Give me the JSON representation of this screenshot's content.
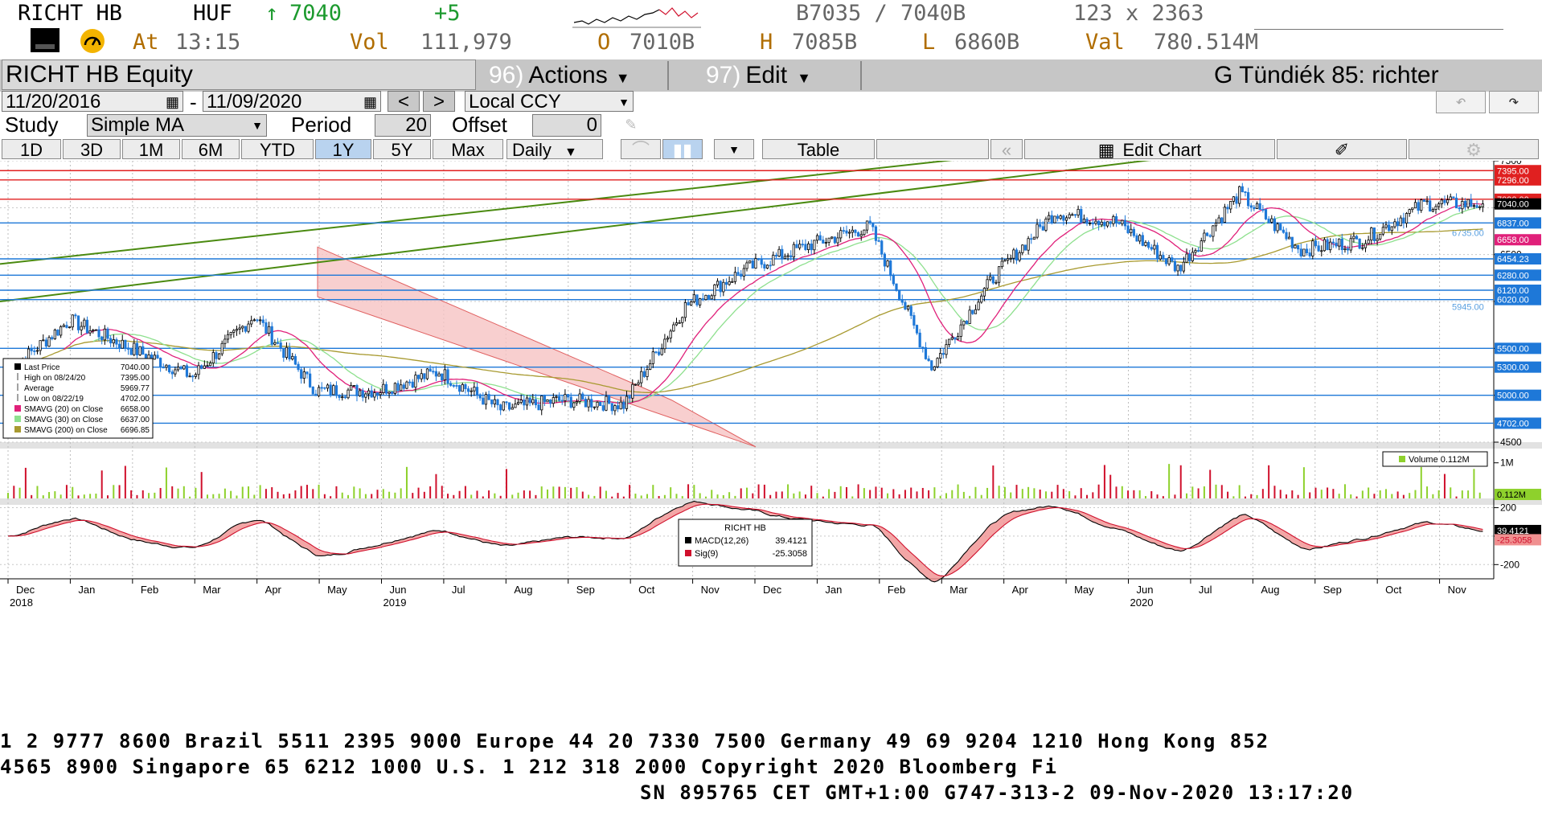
{
  "header": {
    "ticker": "RICHT HB",
    "currency": "HUF",
    "arrow": "↑",
    "last": "7040",
    "change": "+5",
    "bid_ask": "B7035 / 7040B",
    "size": "123 x 2363",
    "at_label": "At",
    "time": "13:15",
    "vol_label": "Vol",
    "vol": "111,979",
    "open_label": "O",
    "open": "7010B",
    "high_label": "H",
    "high": "7085B",
    "low_label": "L",
    "low": "6860B",
    "val_label": "Val",
    "val": "780.514M"
  },
  "titlebar": {
    "security": "RICHT HB Equity",
    "actions_num": "96)",
    "actions": "Actions",
    "edit_num": "97)",
    "edit": "Edit",
    "news": "G Tündiék 85: richter"
  },
  "controls": {
    "start_date": "11/20/2016",
    "dash": "-",
    "end_date": "11/09/2020",
    "prev": "<",
    "next": ">",
    "currency_mode": "Local CCY",
    "study_label": "Study",
    "study": "Simple MA",
    "period_label": "Period",
    "period": "20",
    "offset_label": "Offset",
    "offset": "0"
  },
  "ranges": [
    "1D",
    "3D",
    "1M",
    "6M",
    "YTD",
    "1Y",
    "5Y",
    "Max"
  ],
  "selected_range": "1Y",
  "frequency": "Daily",
  "table_btn": "Table",
  "edit_chart_btn": "Edit Chart",
  "colors": {
    "bar_bg": "#c6c6c6",
    "candle_up": "#000000",
    "candle_down": "#1e78d8",
    "sma20": "#e0207a",
    "sma30": "#8ee08e",
    "sma200": "#a89a30",
    "resistance": "#e02020",
    "support": "#1e78d8",
    "trendline": "#4a8a10",
    "channel_fill": "#f6c3c3",
    "vol_up": "#8ed12c",
    "vol_down": "#d0102c",
    "macd_fill": "#f09090"
  },
  "chart_data": [
    {
      "type": "candlestick",
      "name": "RICHT HB",
      "ylim": [
        4500,
        7500
      ],
      "y_ticks": [
        4500,
        5000,
        5500,
        6000,
        6500,
        7000,
        7500
      ],
      "y_tick_labels": [
        "4500",
        "",
        "",
        "",
        "6500",
        "",
        "7500"
      ],
      "x_months": [
        "Dec",
        "Jan",
        "Feb",
        "Mar",
        "Apr",
        "May",
        "Jun",
        "Jul",
        "Aug",
        "Sep",
        "Oct",
        "Nov",
        "Dec",
        "Jan",
        "Feb",
        "Mar",
        "Apr",
        "May",
        "Jun",
        "Jul",
        "Aug",
        "Sep",
        "Oct",
        "Nov"
      ],
      "x_years": [
        {
          "label": "2018",
          "month_index": 0
        },
        {
          "label": "2019",
          "month_index": 6
        },
        {
          "label": "2020",
          "month_index": 18
        }
      ],
      "month_closes": [
        5250,
        5800,
        5500,
        5200,
        5850,
        5050,
        5050,
        5250,
        4850,
        4950,
        4900,
        5950,
        6350,
        6600,
        6800,
        5300,
        6250,
        6950,
        6850,
        6350,
        7150,
        6550,
        6650,
        7040
      ],
      "horizontal_levels": [
        {
          "value": 7395.0,
          "label": "7395.00",
          "color": "red"
        },
        {
          "value": 7296.0,
          "label": "7296.00",
          "color": "red"
        },
        {
          "value": 7090.0,
          "label": "7090.00",
          "color": "red"
        },
        {
          "value": 6837.0,
          "label": "6837.00",
          "color": "blue"
        },
        {
          "value": 6454.23,
          "label": "6454.23",
          "color": "blue"
        },
        {
          "value": 6280.0,
          "label": "6280.00",
          "color": "blue"
        },
        {
          "value": 6120.0,
          "label": "6120.00",
          "color": "blue"
        },
        {
          "value": 6020.0,
          "label": "6020.00",
          "color": "blue"
        },
        {
          "value": 5500.0,
          "label": "5500.00",
          "color": "blue"
        },
        {
          "value": 5300.0,
          "label": "5300.00",
          "color": "blue"
        },
        {
          "value": 5000.0,
          "label": "5000.00",
          "color": "blue"
        },
        {
          "value": 4702.0,
          "label": "4702.00",
          "color": "blue"
        }
      ],
      "price_tags": [
        {
          "value": 7040.0,
          "label": "7040.00",
          "style": "last"
        },
        {
          "value": 6658.0,
          "label": "6658.00",
          "style": "sma20"
        },
        {
          "value": 6735.0,
          "label": "6735.00",
          "style": "faint"
        },
        {
          "value": 5945.0,
          "label": "5945.00",
          "style": "faint"
        }
      ],
      "legend": [
        {
          "label": "Last Price",
          "value": "7040.00",
          "marker": "black"
        },
        {
          "label": "High on 08/24/20",
          "value": "7395.00",
          "marker": "high"
        },
        {
          "label": "Average",
          "value": "5969.77",
          "marker": "avg"
        },
        {
          "label": "Low on 08/22/19",
          "value": "4702.00",
          "marker": "low"
        },
        {
          "label": "SMAVG (20)  on Close",
          "value": "6658.00",
          "marker": "#e0207a"
        },
        {
          "label": "SMAVG (30)  on Close",
          "value": "6637.00",
          "marker": "#8ee08e"
        },
        {
          "label": "SMAVG (200)  on Close",
          "value": "6696.85",
          "marker": "#a89a30"
        }
      ]
    },
    {
      "type": "bar",
      "name": "Volume",
      "legend": "Volume 0.112M",
      "y_tick_labels": [
        "1M"
      ],
      "ylim": [
        0,
        1.4
      ],
      "last_label": "0.112M",
      "last": 0.112
    },
    {
      "type": "line",
      "name": "MACD",
      "ylim": [
        -300,
        220
      ],
      "y_ticks": [
        200,
        0,
        -200
      ],
      "y_tick_labels": [
        "200",
        "",
        "-200"
      ],
      "title": "RICHT HB",
      "series": [
        {
          "name": "MACD(12,26)",
          "value": "39.4121",
          "last": 39.4121
        },
        {
          "name": "Sig(9)",
          "value": "-25.3058",
          "last": -25.3058
        }
      ],
      "last_labels": [
        "39.4121",
        "-25.3058"
      ]
    }
  ],
  "footer": {
    "line1": "1 2 9777 8600 Brazil 5511 2395 9000 Europe 44 20 7330 7500 Germany 49 69 9204 1210 Hong Kong 852",
    "line2": "4565 8900      Singapore 65 6212 1000      U.S. 1 212 318 2000      Copyright 2020 Bloomberg Fi",
    "line3": "SN 895765 CET  GMT+1:00 G747-313-2 09-Nov-2020 13:17:20"
  }
}
